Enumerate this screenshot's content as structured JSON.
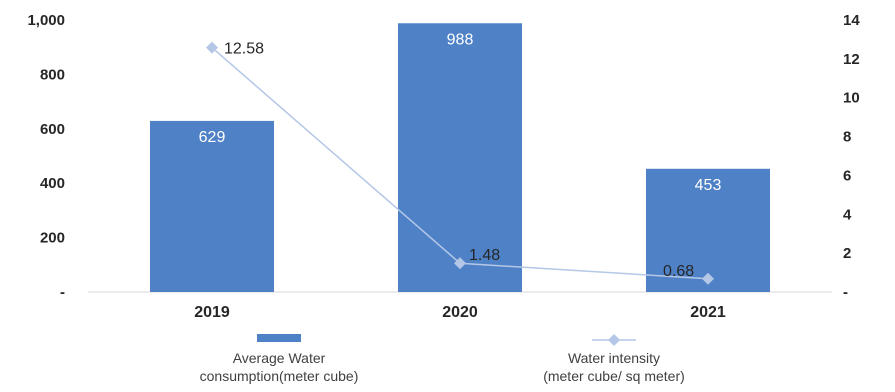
{
  "chart_data": {
    "type": "bar",
    "categories": [
      "2019",
      "2020",
      "2021"
    ],
    "series": [
      {
        "name": "Average Water consumption(meter cube)",
        "legend_lines": [
          "Average Water",
          "consumption(meter cube)"
        ],
        "kind": "bar",
        "axis": "left",
        "values": [
          629,
          988,
          453
        ],
        "labels": [
          "629",
          "988",
          "453"
        ],
        "color": "#4f81c7"
      },
      {
        "name": "Water intensity (meter cube/ sq meter)",
        "legend_lines": [
          "Water intensity",
          "(meter cube/ sq meter)"
        ],
        "kind": "line",
        "axis": "right",
        "values": [
          12.58,
          1.48,
          0.68
        ],
        "labels": [
          "12.58",
          "1.48",
          "0.68"
        ],
        "color": "#b4c7e7"
      }
    ],
    "y_left": {
      "ylim": [
        0,
        1000
      ],
      "ticks": [
        0,
        200,
        400,
        600,
        800,
        1000
      ],
      "tick_labels": [
        "-",
        "200",
        "400",
        "600",
        "800",
        "1,000"
      ]
    },
    "y_right": {
      "ylim": [
        0,
        14
      ],
      "ticks": [
        0,
        2,
        4,
        6,
        8,
        10,
        12,
        14
      ],
      "tick_labels": [
        "-",
        "2",
        "4",
        "6",
        "8",
        "10",
        "12",
        "14"
      ]
    },
    "legend_position": "bottom",
    "grid": false
  }
}
